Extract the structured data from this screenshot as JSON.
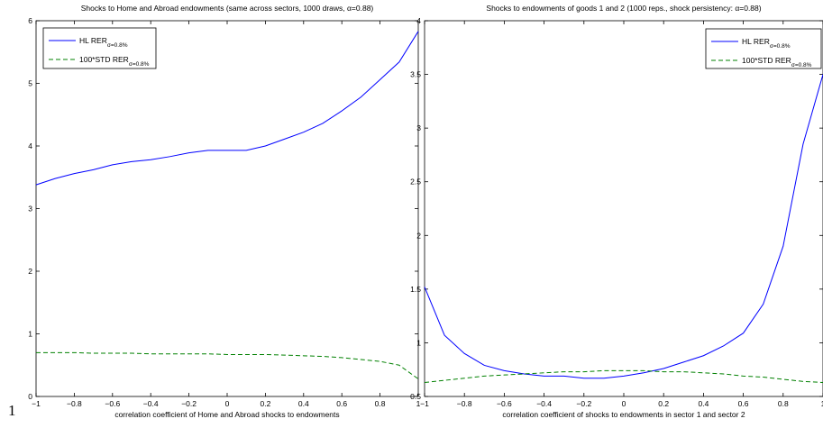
{
  "page_number": "1",
  "chart_data": [
    {
      "type": "line",
      "title": "Shocks to Home and Abroad endowments (same across sectors, 1000 draws, α=0.88)",
      "xlabel": "correlation coefficient of Home and Abroad shocks to endowments",
      "ylabel": "",
      "xlim": [
        -1,
        1
      ],
      "ylim": [
        0,
        6
      ],
      "x_ticks": [
        -1,
        -0.8,
        -0.6,
        -0.4,
        -0.2,
        0,
        0.2,
        0.4,
        0.6,
        0.8,
        1
      ],
      "x_tick_labels": [
        "−1",
        "−0.8",
        "−0.6",
        "−0.4",
        "−0.2",
        "0",
        "0.2",
        "0.4",
        "0.6",
        "0.8",
        "1"
      ],
      "y_ticks": [
        0,
        1,
        2,
        3,
        4,
        5,
        6
      ],
      "y_tick_labels": [
        "0",
        "1",
        "2",
        "3",
        "4",
        "5",
        "6"
      ],
      "grid": false,
      "legend_position": "top-left",
      "x": [
        -1,
        -0.9,
        -0.8,
        -0.7,
        -0.6,
        -0.5,
        -0.4,
        -0.3,
        -0.2,
        -0.1,
        0,
        0.1,
        0.2,
        0.3,
        0.4,
        0.5,
        0.6,
        0.7,
        0.8,
        0.9,
        1
      ],
      "series": [
        {
          "name": "HL RER",
          "name_sub": "σ=0.8%",
          "color": "#0000ff",
          "style": "solid",
          "values": [
            3.38,
            3.48,
            3.56,
            3.62,
            3.7,
            3.75,
            3.78,
            3.83,
            3.89,
            3.93,
            3.93,
            3.93,
            4.0,
            4.11,
            4.22,
            4.36,
            4.56,
            4.78,
            5.06,
            5.34,
            5.83
          ]
        },
        {
          "name": "100*STD RER",
          "name_sub": "σ=0.8%",
          "color": "#008000",
          "style": "dashed",
          "values": [
            0.7,
            0.7,
            0.7,
            0.69,
            0.69,
            0.69,
            0.68,
            0.68,
            0.68,
            0.68,
            0.67,
            0.67,
            0.67,
            0.66,
            0.65,
            0.64,
            0.62,
            0.59,
            0.56,
            0.5,
            0.28
          ]
        }
      ]
    },
    {
      "type": "line",
      "title": "Shocks to endowments of goods 1 and 2 (1000 reps., shock persistency: α=0.88)",
      "xlabel": "correlation coefficient of shocks to endowments in sector 1 and sector 2",
      "ylabel": "",
      "xlim": [
        -1,
        1
      ],
      "ylim": [
        0.5,
        4
      ],
      "x_ticks": [
        -1,
        -0.8,
        -0.6,
        -0.4,
        -0.2,
        0,
        0.2,
        0.4,
        0.6,
        0.8,
        1
      ],
      "x_tick_labels": [
        "−1",
        "−0.8",
        "−0.6",
        "−0.4",
        "−0.2",
        "0",
        "0.2",
        "0.4",
        "0.6",
        "0.8",
        "1"
      ],
      "y_ticks": [
        0.5,
        1,
        1.5,
        2,
        2.5,
        3,
        3.5,
        4
      ],
      "y_tick_labels": [
        "0.5",
        "1",
        "1.5",
        "2",
        "2.5",
        "3",
        "3.5",
        "4"
      ],
      "grid": false,
      "legend_position": "top-right",
      "x": [
        -1,
        -0.9,
        -0.8,
        -0.7,
        -0.6,
        -0.5,
        -0.4,
        -0.3,
        -0.2,
        -0.1,
        0,
        0.1,
        0.2,
        0.3,
        0.4,
        0.5,
        0.6,
        0.7,
        0.8,
        0.9,
        1
      ],
      "series": [
        {
          "name": "HL RER",
          "name_sub": "σ=0.8%",
          "color": "#0000ff",
          "style": "solid",
          "values": [
            1.52,
            1.07,
            0.9,
            0.79,
            0.74,
            0.71,
            0.69,
            0.69,
            0.67,
            0.67,
            0.69,
            0.72,
            0.76,
            0.82,
            0.88,
            0.97,
            1.09,
            1.36,
            1.9,
            2.85,
            3.5
          ]
        },
        {
          "name": "100*STD RER",
          "name_sub": "σ=0.8%",
          "color": "#008000",
          "style": "dashed",
          "values": [
            0.63,
            0.65,
            0.67,
            0.69,
            0.7,
            0.71,
            0.72,
            0.73,
            0.73,
            0.74,
            0.74,
            0.74,
            0.73,
            0.73,
            0.72,
            0.71,
            0.69,
            0.68,
            0.66,
            0.64,
            0.63
          ]
        }
      ]
    }
  ]
}
